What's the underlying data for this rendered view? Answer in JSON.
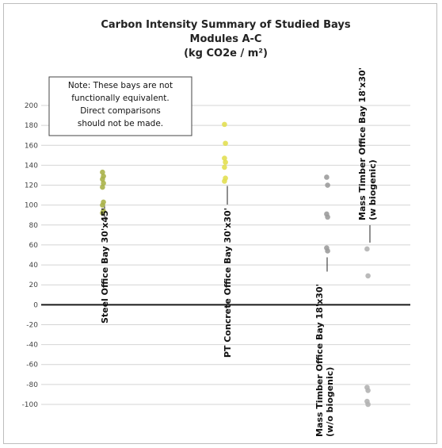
{
  "chart_data": {
    "type": "scatter",
    "title": [
      "Carbon Intensity Summary of Studied Bays",
      "Modules A-C",
      "(kg CO2e / m²)"
    ],
    "ylim": [
      -100,
      200
    ],
    "yticks": [
      200,
      180,
      160,
      140,
      120,
      100,
      80,
      60,
      40,
      20,
      0,
      -20,
      -40,
      -60,
      -80,
      -100
    ],
    "ytick_labels": [
      "200",
      "180",
      "160",
      "140",
      "120",
      "100",
      "80",
      "60",
      "40",
      "20",
      "0",
      "-20",
      "-40",
      "-60",
      "-80",
      "-100"
    ],
    "grid": true,
    "note": [
      "Note: These bays are not",
      "functionally equivalent.",
      "Direct comparisons",
      "should not be made."
    ],
    "categories": [
      {
        "label": [
          "Steel Office Bay 30'x45'"
        ],
        "color": "#aab24a",
        "values": [
          133,
          129,
          126,
          122,
          118,
          103,
          100,
          94,
          92
        ]
      },
      {
        "label": [
          "PT Concrete Office Bay 30'x30'"
        ],
        "color": "#e2df52",
        "values": [
          181,
          162,
          147,
          143,
          138,
          127,
          124
        ]
      },
      {
        "label": [
          "Mass Timber Office Bay 18'x30'",
          "(w/o biogenic)"
        ],
        "color": "#9c9c9c",
        "values": [
          128,
          120,
          91,
          88,
          57,
          54
        ]
      },
      {
        "label": [
          "Mass Timber Office Bay 18'x30'",
          "(w biogenic)"
        ],
        "color": "#b3b3b3",
        "values": [
          56,
          29,
          -83,
          -86,
          -97,
          -100
        ]
      }
    ]
  }
}
